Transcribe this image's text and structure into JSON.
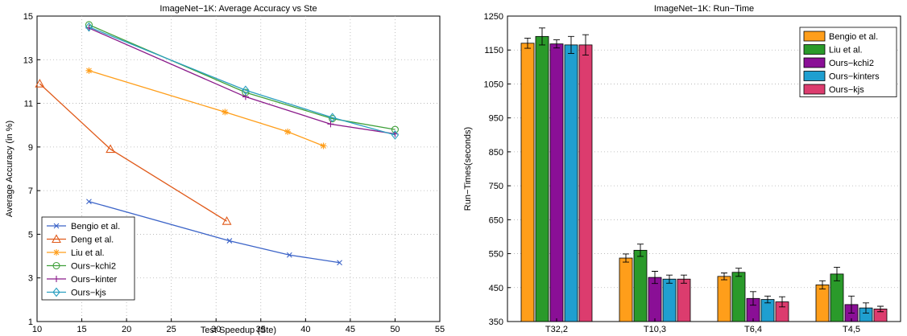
{
  "chart_data": [
    {
      "type": "line",
      "title": "ImageNet−1K: Average Accuracy vs Ste",
      "xlabel": "Test Speedup (Ste)",
      "ylabel": "Average Accuracy (in %)",
      "xlim": [
        10,
        55
      ],
      "ylim": [
        1,
        15
      ],
      "xticks": [
        10,
        15,
        20,
        25,
        30,
        35,
        40,
        45,
        50,
        55
      ],
      "yticks": [
        1,
        3,
        5,
        7,
        9,
        11,
        13,
        15
      ],
      "grid": true,
      "legend_position": "bottom-left",
      "series": [
        {
          "name": "Bengio et al.",
          "color": "#3c64c8",
          "marker": "x",
          "x": [
            15.8,
            31.5,
            38.2,
            43.8
          ],
          "y": [
            6.5,
            4.7,
            4.05,
            3.7
          ]
        },
        {
          "name": "Deng et al.",
          "color": "#e05a1a",
          "marker": "triangle",
          "x": [
            10.3,
            18.2,
            31.2
          ],
          "y": [
            11.9,
            8.9,
            5.6
          ]
        },
        {
          "name": "Liu et al.",
          "color": "#ff9e1a",
          "marker": "star",
          "x": [
            15.8,
            31.0,
            38.0,
            42.0
          ],
          "y": [
            12.5,
            10.6,
            9.7,
            9.05
          ]
        },
        {
          "name": "Ours−kchi2",
          "color": "#3fa03a",
          "marker": "circle",
          "x": [
            15.8,
            33.3,
            43.0,
            50.0
          ],
          "y": [
            14.6,
            11.5,
            10.3,
            9.8
          ]
        },
        {
          "name": "Ours−kinter",
          "color": "#8a1a8a",
          "marker": "plus",
          "x": [
            15.8,
            33.3,
            42.8,
            50.0
          ],
          "y": [
            14.45,
            11.3,
            10.05,
            9.6
          ]
        },
        {
          "name": "Ours−kjs",
          "color": "#2a9fc0",
          "marker": "diamond",
          "x": [
            15.8,
            33.3,
            43.0,
            50.0
          ],
          "y": [
            14.5,
            11.6,
            10.35,
            9.55
          ]
        }
      ]
    },
    {
      "type": "bar",
      "title": "ImageNet−1K: Run−Time",
      "xlabel": "",
      "ylabel": "Run−Times(seconds)",
      "ylim": [
        350,
        1250
      ],
      "yticks": [
        350,
        450,
        550,
        650,
        750,
        850,
        950,
        1050,
        1150,
        1250
      ],
      "grid": true,
      "legend_position": "top-right",
      "categories": [
        "T32,2",
        "T10,3",
        "T6,4",
        "T4,5"
      ],
      "series": [
        {
          "name": "Bengio et al.",
          "color": "#ff9e1a",
          "values": [
            1170,
            537,
            483,
            458
          ],
          "errors": [
            15,
            12,
            10,
            12
          ]
        },
        {
          "name": "Liu et al.",
          "color": "#2a9a2a",
          "values": [
            1190,
            560,
            495,
            490
          ],
          "errors": [
            25,
            18,
            12,
            20
          ]
        },
        {
          "name": "Ours−kchi2",
          "color": "#8a0f96",
          "values": [
            1168,
            480,
            418,
            400
          ],
          "errors": [
            12,
            18,
            20,
            25
          ]
        },
        {
          "name": "Ours−kinters",
          "color": "#1f9fd0",
          "values": [
            1165,
            475,
            415,
            390
          ],
          "errors": [
            25,
            12,
            10,
            15
          ]
        },
        {
          "name": "Ours−kjs",
          "color": "#dc3c6e",
          "values": [
            1165,
            475,
            408,
            387
          ],
          "errors": [
            30,
            12,
            15,
            8
          ]
        }
      ]
    }
  ]
}
